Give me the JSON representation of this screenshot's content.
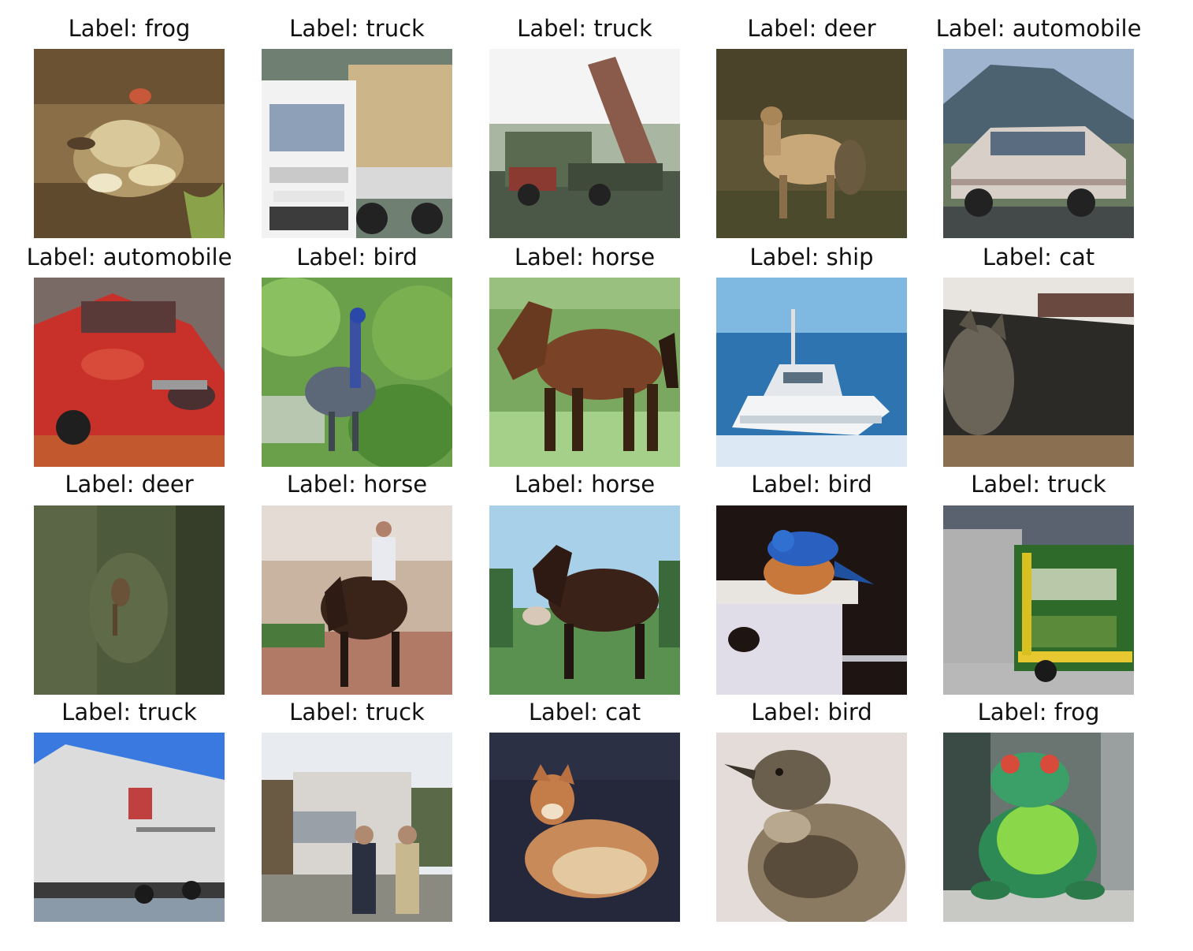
{
  "grid": {
    "rows": 4,
    "columns": 5,
    "items": [
      {
        "title": "Label: frog",
        "scene": "frog-on-ground"
      },
      {
        "title": "Label: truck",
        "scene": "white-truck-front"
      },
      {
        "title": "Label: truck",
        "scene": "dump-truck-tipping"
      },
      {
        "title": "Label: deer",
        "scene": "deer-in-grass"
      },
      {
        "title": "Label: automobile",
        "scene": "silver-car-mountains"
      },
      {
        "title": "Label: automobile",
        "scene": "red-sports-car"
      },
      {
        "title": "Label: bird",
        "scene": "peacock-statue-in-foliage"
      },
      {
        "title": "Label: horse",
        "scene": "brown-horse-on-grass"
      },
      {
        "title": "Label: ship",
        "scene": "white-boat-on-water"
      },
      {
        "title": "Label: cat",
        "scene": "dark-cat-on-sofa"
      },
      {
        "title": "Label: deer",
        "scene": "deer-in-forest"
      },
      {
        "title": "Label: horse",
        "scene": "rider-on-horse"
      },
      {
        "title": "Label: horse",
        "scene": "dark-horse-field"
      },
      {
        "title": "Label: bird",
        "scene": "bluebird-on-birdhouse"
      },
      {
        "title": "Label: truck",
        "scene": "green-truck-front"
      },
      {
        "title": "Label: truck",
        "scene": "white-trailer-truck"
      },
      {
        "title": "Label: truck",
        "scene": "truck-with-people"
      },
      {
        "title": "Label: cat",
        "scene": "orange-cat-lying"
      },
      {
        "title": "Label: bird",
        "scene": "sparrow-closeup"
      },
      {
        "title": "Label: frog",
        "scene": "green-frog-statue"
      }
    ]
  }
}
